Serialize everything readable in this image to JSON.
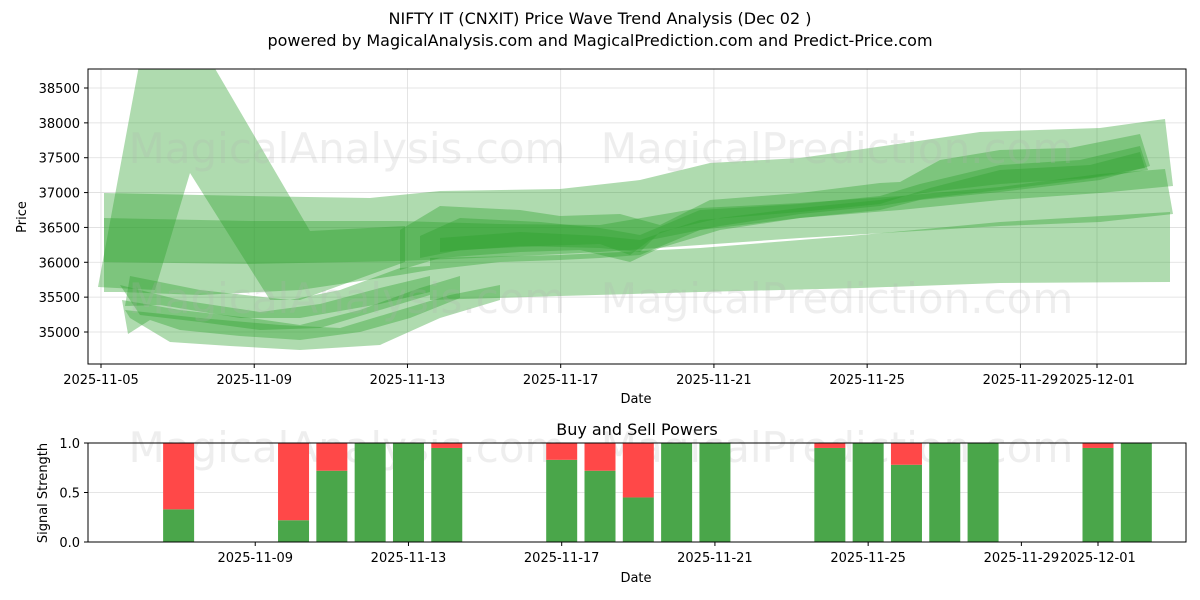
{
  "header": {
    "title": "NIFTY IT (CNXIT) Price Wave Trend Analysis (Dec 02 )",
    "subtitle": "powered by MagicalAnalysis.com and MagicalPrediction.com and Predict-Price.com"
  },
  "watermarks": [
    "MagicalAnalysis.com",
    "MagicalPrediction.com"
  ],
  "colors": {
    "band_green": "#2ca02c",
    "buy_green": "#4aa64a",
    "sell_red": "#ff4848",
    "grid": "#dddddd"
  },
  "chart_data": [
    {
      "type": "area",
      "title": "NIFTY IT (CNXIT) Price Wave Trend Analysis (Dec 02 )",
      "xlabel": "Date",
      "ylabel": "Price",
      "x_tick_labels": [
        "2025-11-05",
        "2025-11-09",
        "2025-11-13",
        "2025-11-17",
        "2025-11-21",
        "2025-11-25",
        "2025-11-29",
        "2025-12-01"
      ],
      "y_tick_labels": [
        "35000",
        "35500",
        "36000",
        "36500",
        "37000",
        "37500",
        "38000",
        "38500"
      ],
      "ylim": [
        34600,
        38800
      ],
      "grid": true,
      "legend": "none",
      "description": "Overlapping semi-transparent green wave bands showing price trend; central tendency rising from ~36200 to ~37400",
      "center_trend": {
        "x": [
          "2025-11-06",
          "2025-11-10",
          "2025-11-13",
          "2025-11-17",
          "2025-11-19",
          "2025-11-21",
          "2025-11-25",
          "2025-11-28",
          "2025-12-02"
        ],
        "y": [
          35300,
          35100,
          36100,
          36250,
          36050,
          36550,
          36800,
          37200,
          37450
        ]
      },
      "bands": [
        {
          "name": "wide-spike",
          "upper": [
            [
              "2025-11-06",
              35650
            ],
            [
              "2025-11-06.5",
              38800
            ],
            [
              "2025-11-07.8",
              38800
            ],
            [
              "2025-11-10.5",
              36450
            ],
            [
              "2025-11-13",
              36600
            ]
          ],
          "lower": [
            [
              "2025-11-07.7",
              35600
            ],
            [
              "2025-11-09.3",
              35500
            ],
            [
              "2025-11-13",
              35800
            ]
          ]
        },
        {
          "name": "wide-outer",
          "upper": [
            [
              "2025-11-05",
              37000
            ],
            [
              "2025-11-13",
              37000
            ],
            [
              "2025-11-17",
              37050
            ],
            [
              "2025-11-21",
              37400
            ],
            [
              "2025-11-25",
              37600
            ],
            [
              "2025-11-28",
              37850
            ],
            [
              "2025-12-02.8",
              38050
            ]
          ],
          "lower": [
            [
              "2025-11-05",
              36000
            ],
            [
              "2025-11-13",
              35600
            ],
            [
              "2025-11-21",
              35550
            ],
            [
              "2025-12-02.8",
              35700
            ]
          ]
        },
        {
          "name": "mid-band",
          "upper": [
            [
              "2025-11-05",
              36650
            ],
            [
              "2025-11-13",
              36650
            ],
            [
              "2025-11-21",
              36900
            ],
            [
              "2025-12-02.8",
              37650
            ]
          ],
          "lower": [
            [
              "2025-11-05",
              36000
            ],
            [
              "2025-11-13",
              35950
            ],
            [
              "2025-11-21",
              36250
            ],
            [
              "2025-12-02.8",
              36850
            ]
          ]
        }
      ]
    },
    {
      "type": "bar",
      "title": "Buy and Sell Powers",
      "xlabel": "Date",
      "ylabel": "Signal Strength",
      "ylim": [
        0,
        1.0
      ],
      "y_tick_labels": [
        "0.0",
        "0.5",
        "1.0"
      ],
      "x_tick_labels": [
        "2025-11-09",
        "2025-11-13",
        "2025-11-17",
        "2025-11-21",
        "2025-11-25",
        "2025-11-29",
        "2025-12-01"
      ],
      "grid": true,
      "categories": [
        "2025-11-07",
        "2025-11-10",
        "2025-11-11",
        "2025-11-12",
        "2025-11-13",
        "2025-11-14",
        "2025-11-17",
        "2025-11-18",
        "2025-11-19",
        "2025-11-20",
        "2025-11-21",
        "2025-11-24",
        "2025-11-25",
        "2025-11-26",
        "2025-11-27",
        "2025-11-28",
        "2025-12-01",
        "2025-12-02"
      ],
      "series": [
        {
          "name": "Buy",
          "color": "#4aa64a",
          "values": [
            0.33,
            0.22,
            0.72,
            1.0,
            1.0,
            0.95,
            0.83,
            0.72,
            0.45,
            1.0,
            1.0,
            0.95,
            1.0,
            0.78,
            1.0,
            1.0,
            0.95,
            1.0
          ]
        },
        {
          "name": "Sell",
          "color": "#ff4848",
          "values": [
            0.67,
            0.78,
            0.28,
            0.0,
            0.0,
            0.05,
            0.17,
            0.28,
            0.55,
            0.0,
            0.0,
            0.05,
            0.0,
            0.22,
            0.0,
            0.0,
            0.05,
            0.0
          ]
        }
      ]
    }
  ]
}
